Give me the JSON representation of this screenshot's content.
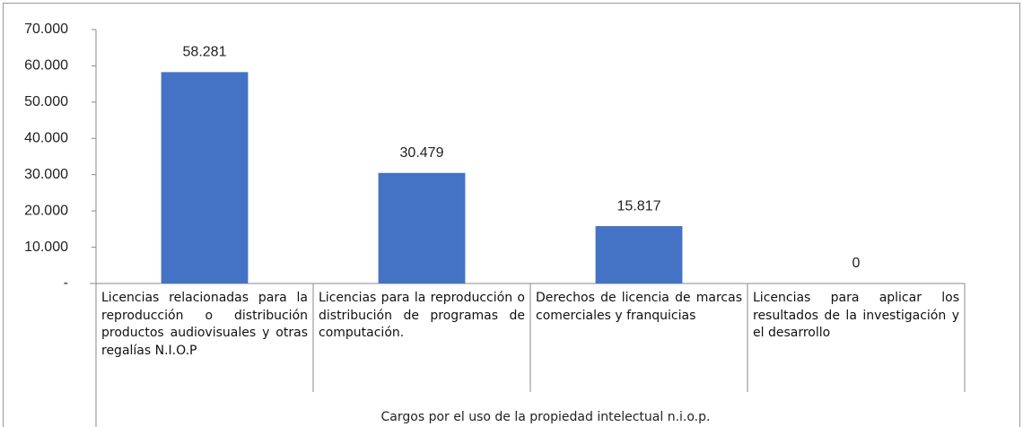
{
  "chart_data": {
    "type": "bar",
    "categories": [
      "Licencias relacionadas para la reproducción o distribución productos audiovisuales y otras regalías N.I.O.P",
      "Licencias para la reproducción o distribución de programas de computación.",
      "Derechos de licencia de marcas comerciales y franquicias",
      "Licencias para aplicar los resultados de la investigación y el desarrollo"
    ],
    "values": [
      58281,
      30479,
      15817,
      0
    ],
    "value_labels": [
      "58.281",
      "30.479",
      "15.817",
      "0"
    ],
    "color": "#4472c4",
    "x_label": "Cargos por el uso de la propiedad intelectual n.i.o.p.",
    "ylim": [
      0,
      70000
    ],
    "yticks": [
      {
        "value": 0,
        "label": "-"
      },
      {
        "value": 10000,
        "label": "10.000"
      },
      {
        "value": 20000,
        "label": "20.000"
      },
      {
        "value": 30000,
        "label": "30.000"
      },
      {
        "value": 40000,
        "label": "40.000"
      },
      {
        "value": 50000,
        "label": "50.000"
      },
      {
        "value": 60000,
        "label": "60.000"
      },
      {
        "value": 70000,
        "label": "70.000"
      }
    ],
    "grid": false
  }
}
